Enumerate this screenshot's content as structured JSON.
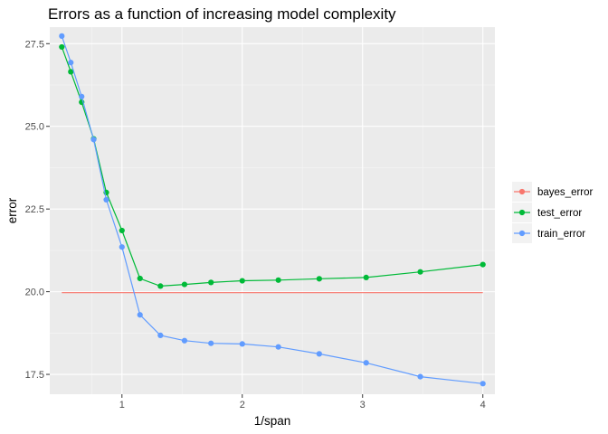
{
  "chart_data": {
    "type": "line",
    "title": "Errors as a function of increasing model complexity",
    "xlabel": "1/span",
    "ylabel": "error",
    "xlim": [
      0.4,
      4.1
    ],
    "ylim": [
      16.9,
      28.0
    ],
    "x_ticks": [
      1,
      2,
      3,
      4
    ],
    "x_tick_labels": [
      "1",
      "2",
      "3",
      "4"
    ],
    "y_ticks": [
      17.5,
      20.0,
      22.5,
      25.0,
      27.5
    ],
    "y_tick_labels": [
      "17.5",
      "20.0",
      "22.5",
      "25.0",
      "27.5"
    ],
    "grid": true,
    "legend_position": "right",
    "x": [
      0.5,
      0.575,
      0.665,
      0.765,
      0.87,
      1.0,
      1.15,
      1.32,
      1.52,
      1.74,
      2.0,
      2.3,
      2.64,
      3.03,
      3.48,
      4.0
    ],
    "series": [
      {
        "name": "bayes_error",
        "color": "#F8766D",
        "points": false,
        "x": [
          0.5,
          4.0
        ],
        "values": [
          19.97,
          19.97
        ]
      },
      {
        "name": "test_error",
        "color": "#00BA38",
        "points": true,
        "values": [
          27.4,
          26.65,
          25.73,
          24.62,
          23.0,
          21.85,
          20.4,
          20.17,
          20.22,
          20.28,
          20.33,
          20.35,
          20.39,
          20.43,
          20.6,
          20.82
        ]
      },
      {
        "name": "train_error",
        "color": "#619CFF",
        "points": true,
        "values": [
          27.73,
          26.93,
          25.9,
          24.6,
          22.78,
          21.35,
          19.3,
          18.68,
          18.52,
          18.44,
          18.42,
          18.33,
          18.12,
          17.85,
          17.43,
          17.22
        ]
      }
    ]
  }
}
